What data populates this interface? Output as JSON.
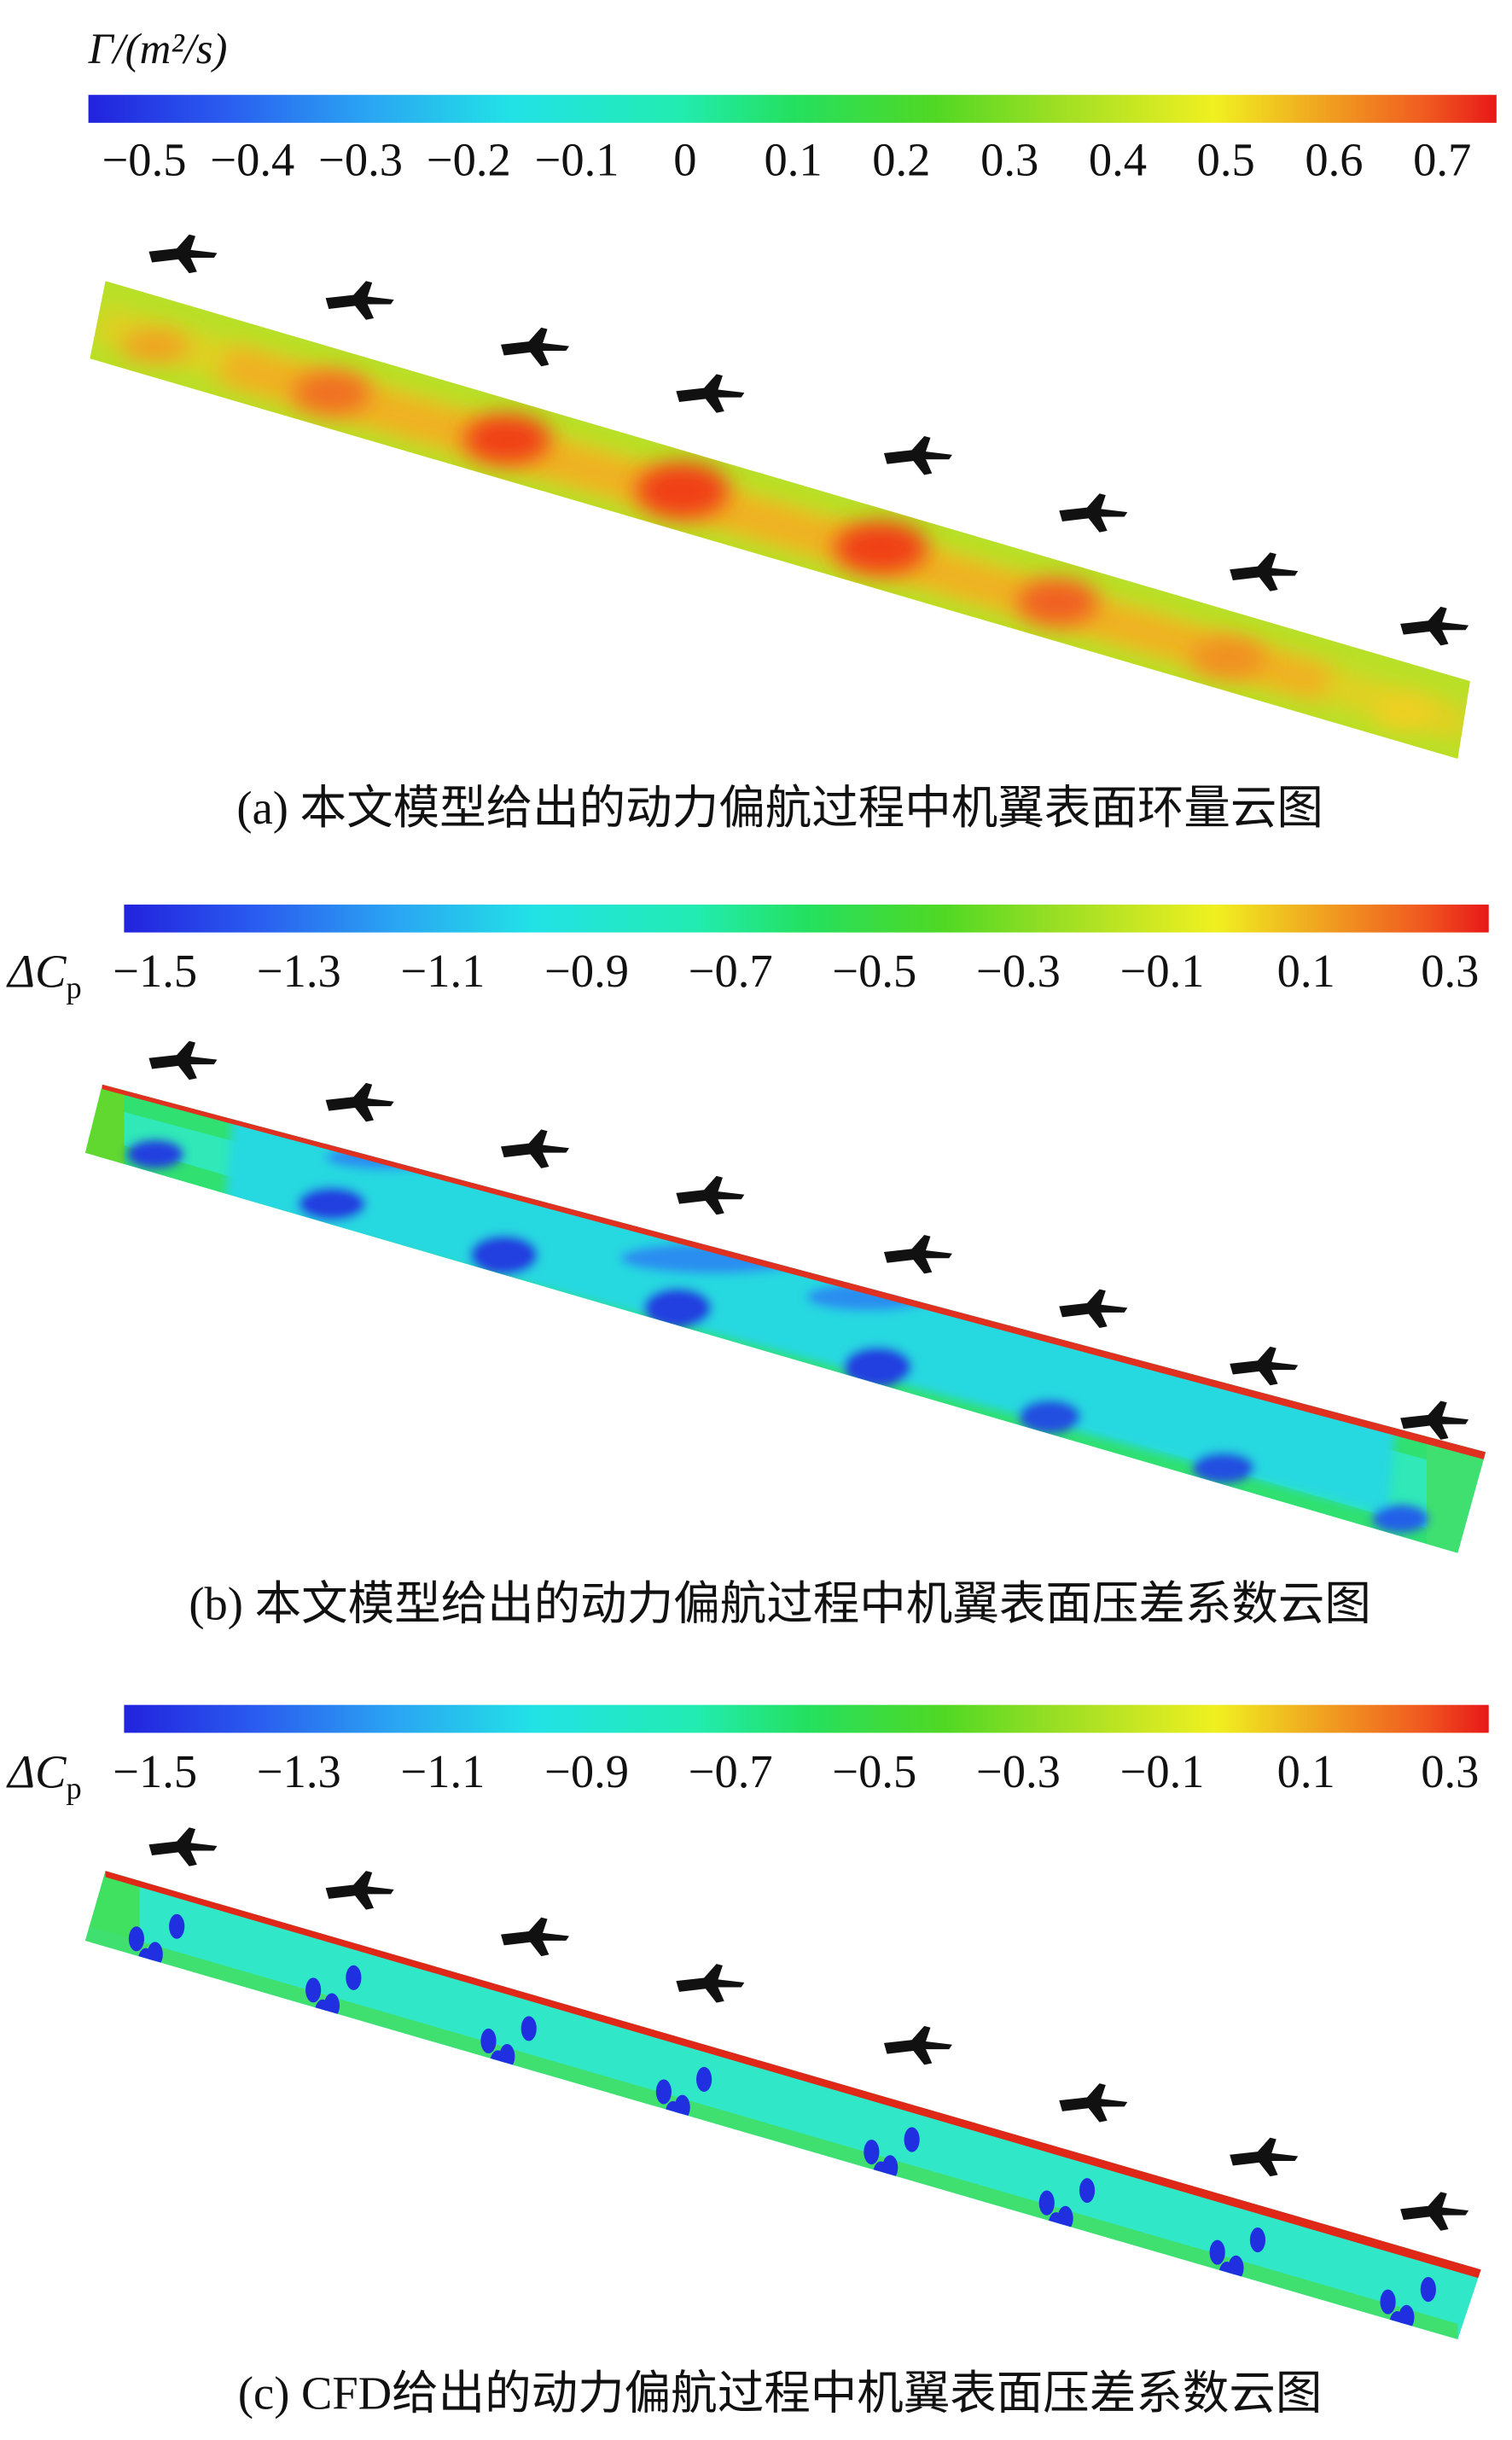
{
  "panels": [
    {
      "colorbar": {
        "label": "Γ/(m²/s)",
        "ticks": [
          "−0.5",
          "−0.4",
          "−0.3",
          "−0.2",
          "−0.1",
          "0",
          "0.1",
          "0.2",
          "0.3",
          "0.4",
          "0.5",
          "0.6",
          "0.7"
        ]
      },
      "caption": "(a) 本文模型给出的动力偏航过程中机翼表面环量云图"
    },
    {
      "colorbar": {
        "label_main": "ΔC",
        "label_sub": "p",
        "ticks": [
          "−1.5",
          "−1.3",
          "−1.1",
          "−0.9",
          "−0.7",
          "−0.5",
          "−0.3",
          "−0.1",
          "0.1",
          "0.3"
        ]
      },
      "caption": "(b) 本文模型给出的动力偏航过程中机翼表面压差系数云图"
    },
    {
      "colorbar": {
        "label_main": "ΔC",
        "label_sub": "p",
        "ticks": [
          "−1.5",
          "−1.3",
          "−1.1",
          "−0.9",
          "−0.7",
          "−0.5",
          "−0.3",
          "−0.1",
          "0.1",
          "0.3"
        ]
      },
      "caption": "(c) CFD给出的动力偏航过程中机翼表面压差系数云图"
    }
  ]
}
